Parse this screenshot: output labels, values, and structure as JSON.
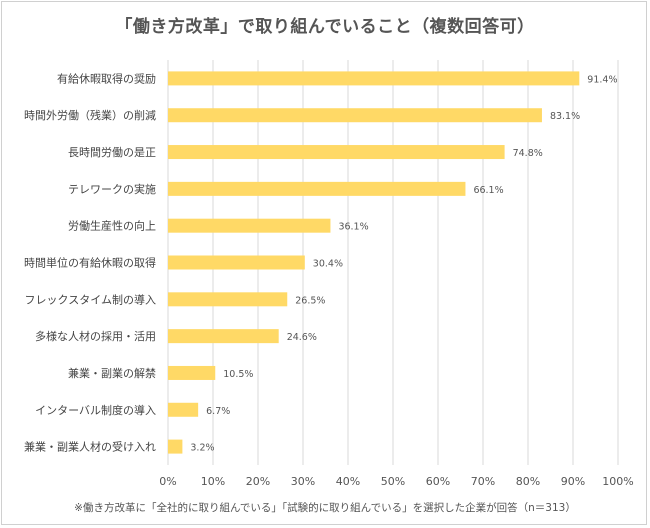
{
  "chart_data": {
    "type": "bar",
    "orientation": "horizontal",
    "title": "「働き方改革」で取り組んでいること（複数回答可）",
    "categories": [
      "有給休暇取得の奨励",
      "時間外労働（残業）の削減",
      "長時間労働の是正",
      "テレワークの実施",
      "労働生産性の向上",
      "時間単位の有給休暇の取得",
      "フレックスタイム制の導入",
      "多様な人材の採用・活用",
      "兼業・副業の解禁",
      "インターバル制度の導入",
      "兼業・副業人材の受け入れ"
    ],
    "values": [
      91.4,
      83.1,
      74.8,
      66.1,
      36.1,
      30.4,
      26.5,
      24.6,
      10.5,
      6.7,
      3.2
    ],
    "value_labels": [
      "91.4%",
      "83.1%",
      "74.8%",
      "66.1%",
      "36.1%",
      "30.4%",
      "26.5%",
      "24.6%",
      "10.5%",
      "6.7%",
      "3.2%"
    ],
    "xlim": [
      0,
      100
    ],
    "x_ticks": [
      "0%",
      "10%",
      "20%",
      "30%",
      "40%",
      "50%",
      "60%",
      "70%",
      "80%",
      "90%",
      "100%"
    ],
    "grid": true,
    "bar_color": "#FFD966",
    "grid_color": "#D9D9D9",
    "footnote": "※働き方改革に「全社的に取り組んでいる」「試験的に取り組んでいる」を選択した企業が回答（n＝313）"
  }
}
